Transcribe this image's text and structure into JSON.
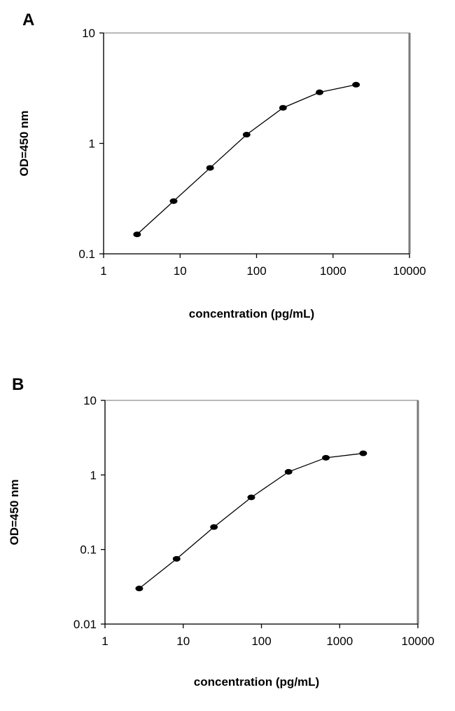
{
  "chart_data": [
    {
      "panel": "A",
      "type": "line",
      "xlabel": "concentration (pg/mL)",
      "ylabel": "OD=450 nm",
      "x_scale": "log",
      "y_scale": "log",
      "xlim": [
        1,
        10000
      ],
      "ylim": [
        0.1,
        10
      ],
      "x_ticks": [
        1,
        10,
        100,
        1000,
        10000
      ],
      "x_tick_labels": [
        "1",
        "10",
        "100",
        "1000",
        "10000"
      ],
      "y_ticks": [
        0.1,
        1,
        10
      ],
      "y_tick_labels": [
        "0.1",
        "1",
        "10"
      ],
      "grid": false,
      "series": [
        {
          "x": [
            2.74,
            8.23,
            24.7,
            74.1,
            222,
            667,
            2000
          ],
          "y": [
            0.15,
            0.3,
            0.6,
            1.2,
            2.1,
            2.9,
            3.4
          ]
        }
      ]
    },
    {
      "panel": "B",
      "type": "line",
      "xlabel": "concentration (pg/mL)",
      "ylabel": "OD=450 nm",
      "x_scale": "log",
      "y_scale": "log",
      "xlim": [
        1,
        10000
      ],
      "ylim": [
        0.01,
        10
      ],
      "x_ticks": [
        1,
        10,
        100,
        1000,
        10000
      ],
      "x_tick_labels": [
        "1",
        "10",
        "100",
        "1000",
        "10000"
      ],
      "y_ticks": [
        0.01,
        0.1,
        1,
        10
      ],
      "y_tick_labels": [
        "0.01",
        "0.1",
        "1",
        "10"
      ],
      "grid": false,
      "series": [
        {
          "x": [
            2.74,
            8.23,
            24.7,
            74.1,
            222,
            667,
            2000
          ],
          "y": [
            0.03,
            0.075,
            0.2,
            0.5,
            1.1,
            1.7,
            1.95
          ]
        }
      ]
    }
  ]
}
